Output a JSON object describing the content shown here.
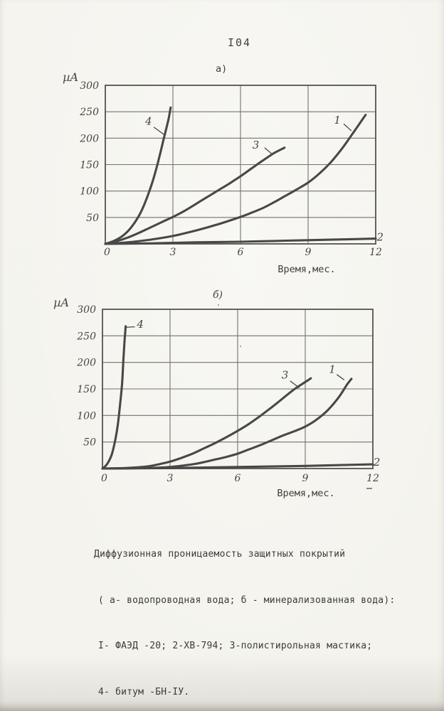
{
  "page": {
    "number": "I04"
  },
  "caption": {
    "lines": [
      "Диффузионная проницаемость защитных покрытий",
      "( а- водопроводная вода; б - минерализованная вода):",
      "I- ФАЭД -20; 2-ХВ-794; 3-полистирольная мастика;",
      "4- битум -БН-IУ."
    ]
  },
  "ink": {
    "curve": "#4a4846",
    "grid": "#767268",
    "border": "#55534e",
    "text": "#403e3a"
  },
  "chart_data": [
    {
      "id": "a",
      "type": "line",
      "title": "а)",
      "ylabel": "µA",
      "xlabel": "Время,мес.",
      "xlim": [
        0,
        12
      ],
      "ylim": [
        0,
        300
      ],
      "x_ticks": [
        0,
        3,
        6,
        9,
        12
      ],
      "y_ticks": [
        300,
        250,
        200,
        150,
        100,
        50
      ],
      "grid": true,
      "series": [
        {
          "name": "1",
          "coating": "ФАЭД-20",
          "points": [
            [
              0,
              0
            ],
            [
              1,
              3
            ],
            [
              2,
              8
            ],
            [
              3,
              15
            ],
            [
              4,
              25
            ],
            [
              5,
              37
            ],
            [
              6,
              51
            ],
            [
              6.5,
              59
            ],
            [
              7,
              68
            ],
            [
              7.5,
              79
            ],
            [
              8,
              91
            ],
            [
              8.5,
              103
            ],
            [
              9,
              116
            ],
            [
              9.5,
              133
            ],
            [
              10,
              154
            ],
            [
              10.5,
              180
            ],
            [
              11,
              210
            ],
            [
              11.55,
              244
            ]
          ]
        },
        {
          "name": "2",
          "coating": "ХВ-794",
          "points": [
            [
              0,
              0
            ],
            [
              2,
              1
            ],
            [
              4,
              3
            ],
            [
              6,
              4
            ],
            [
              8,
              6
            ],
            [
              10,
              8
            ],
            [
              12,
              10
            ]
          ]
        },
        {
          "name": "3",
          "coating": "полистирольная мастика",
          "points": [
            [
              0,
              0
            ],
            [
              0.5,
              5
            ],
            [
              1,
              12
            ],
            [
              1.5,
              21
            ],
            [
              2,
              31
            ],
            [
              2.5,
              41
            ],
            [
              3,
              51
            ],
            [
              3.5,
              62
            ],
            [
              4,
              75
            ],
            [
              4.5,
              88
            ],
            [
              5,
              101
            ],
            [
              5.5,
              114
            ],
            [
              6,
              128
            ],
            [
              6.5,
              143
            ],
            [
              7,
              158
            ],
            [
              7.5,
              172
            ],
            [
              7.95,
              182
            ]
          ]
        },
        {
          "name": "4",
          "coating": "битум БН-IУ",
          "points": [
            [
              0,
              0
            ],
            [
              0.4,
              6
            ],
            [
              0.8,
              16
            ],
            [
              1.2,
              34
            ],
            [
              1.6,
              62
            ],
            [
              2,
              105
            ],
            [
              2.3,
              148
            ],
            [
              2.6,
              200
            ],
            [
              2.8,
              235
            ],
            [
              2.9,
              258
            ]
          ]
        }
      ],
      "annotations": [
        {
          "label": "4",
          "x": 1.92,
          "y": 232,
          "leader": [
            [
              2.15,
              221
            ],
            [
              2.6,
              207
            ]
          ]
        },
        {
          "label": "3",
          "x": 6.68,
          "y": 187,
          "leader": [
            [
              7.07,
              182
            ],
            [
              7.4,
              170
            ]
          ]
        },
        {
          "label": "1",
          "x": 10.3,
          "y": 234,
          "leader": [
            [
              10.58,
              227
            ],
            [
              10.92,
              214
            ]
          ]
        },
        {
          "label": "2",
          "x": 12.2,
          "y": 13
        }
      ]
    },
    {
      "id": "b",
      "type": "line",
      "title": "б)",
      "ylabel": "µA",
      "xlabel": "Время,мес.",
      "xlim": [
        0,
        12
      ],
      "ylim": [
        0,
        300
      ],
      "x_ticks": [
        0,
        3,
        6,
        9,
        12
      ],
      "y_ticks": [
        300,
        250,
        200,
        150,
        100,
        50
      ],
      "grid": true,
      "series": [
        {
          "name": "1",
          "coating": "ФАЭД-20",
          "points": [
            [
              0,
              0
            ],
            [
              2,
              1
            ],
            [
              3,
              3
            ],
            [
              4,
              8
            ],
            [
              4.5,
              12
            ],
            [
              5,
              17
            ],
            [
              5.5,
              22
            ],
            [
              6,
              28
            ],
            [
              6.5,
              36
            ],
            [
              7,
              44
            ],
            [
              7.5,
              53
            ],
            [
              8,
              62
            ],
            [
              8.5,
              70
            ],
            [
              9,
              79
            ],
            [
              9.5,
              92
            ],
            [
              10,
              110
            ],
            [
              10.5,
              135
            ],
            [
              10.85,
              158
            ],
            [
              11.05,
              169
            ]
          ]
        },
        {
          "name": "2",
          "coating": "ХВ-794",
          "points": [
            [
              0,
              0
            ],
            [
              3,
              1
            ],
            [
              6,
              3
            ],
            [
              9,
              5
            ],
            [
              12,
              8
            ]
          ]
        },
        {
          "name": "3",
          "coating": "полистирольная мастика",
          "points": [
            [
              0,
              0
            ],
            [
              1,
              1
            ],
            [
              2,
              4
            ],
            [
              2.5,
              8
            ],
            [
              3,
              13
            ],
            [
              3.5,
              20
            ],
            [
              4,
              28
            ],
            [
              4.5,
              38
            ],
            [
              5,
              48
            ],
            [
              5.5,
              59
            ],
            [
              6,
              71
            ],
            [
              6.5,
              84
            ],
            [
              7,
              99
            ],
            [
              7.5,
              115
            ],
            [
              8,
              132
            ],
            [
              8.5,
              149
            ],
            [
              9,
              163
            ],
            [
              9.25,
              170
            ]
          ]
        },
        {
          "name": "4",
          "coating": "битум БН-IУ",
          "points": [
            [
              0,
              0
            ],
            [
              0.2,
              8
            ],
            [
              0.4,
              25
            ],
            [
              0.55,
              50
            ],
            [
              0.68,
              82
            ],
            [
              0.78,
              120
            ],
            [
              0.87,
              160
            ],
            [
              0.93,
              205
            ],
            [
              0.98,
              240
            ],
            [
              1.03,
              268
            ]
          ]
        }
      ],
      "annotations": [
        {
          "label": "4",
          "x": 1.68,
          "y": 272,
          "leader": [
            [
              1.44,
              267
            ],
            [
              1.02,
              266
            ]
          ]
        },
        {
          "label": "3",
          "x": 8.1,
          "y": 176,
          "leader": [
            [
              8.33,
              165
            ],
            [
              8.74,
              152
            ]
          ]
        },
        {
          "label": "1",
          "x": 10.2,
          "y": 187,
          "leader": [
            [
              10.4,
              177
            ],
            [
              10.73,
              167
            ]
          ]
        },
        {
          "label": "2",
          "x": 12.18,
          "y": 12
        }
      ]
    }
  ]
}
